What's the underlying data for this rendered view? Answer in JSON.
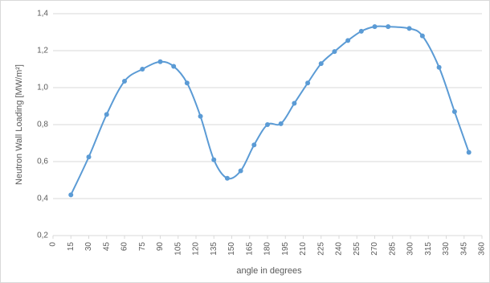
{
  "chart_data": {
    "type": "line",
    "x_label": "angle in degrees",
    "y_label": "Neutron Wall Loading [MW/m²]",
    "x": [
      15,
      30,
      45,
      60,
      75,
      90,
      101.25,
      112.5,
      123.75,
      135,
      146.25,
      157.5,
      168.75,
      180,
      191.25,
      202.5,
      213.75,
      225,
      236.25,
      247.5,
      258.75,
      270,
      281.25,
      299,
      310,
      324,
      337,
      349
    ],
    "series": [
      {
        "color": "#5b9bd5",
        "values": [
          0.42,
          0.625,
          0.855,
          1.035,
          1.1,
          1.14,
          1.115,
          1.025,
          0.845,
          0.61,
          0.51,
          0.55,
          0.69,
          0.8,
          0.805,
          0.915,
          1.025,
          1.13,
          1.195,
          1.255,
          1.305,
          1.33,
          1.33,
          1.32,
          1.28,
          1.11,
          0.87,
          0.65
        ]
      }
    ],
    "xlim": [
      0,
      360
    ],
    "xticks": [
      0,
      15,
      30,
      45,
      60,
      75,
      90,
      105,
      120,
      135,
      150,
      165,
      180,
      195,
      210,
      225,
      240,
      255,
      270,
      285,
      300,
      315,
      330,
      345,
      360
    ],
    "ylim": [
      0.2,
      1.4
    ],
    "yticks": [
      {
        "value": 0.2,
        "label": "0,2"
      },
      {
        "value": 0.4,
        "label": "0,4"
      },
      {
        "value": 0.6,
        "label": "0,6"
      },
      {
        "value": 0.8,
        "label": "0,8"
      },
      {
        "value": 1.0,
        "label": "1,0"
      },
      {
        "value": 1.2,
        "label": "1,2"
      },
      {
        "value": 1.4,
        "label": "1,4"
      }
    ],
    "grid": true,
    "smooth": true
  }
}
